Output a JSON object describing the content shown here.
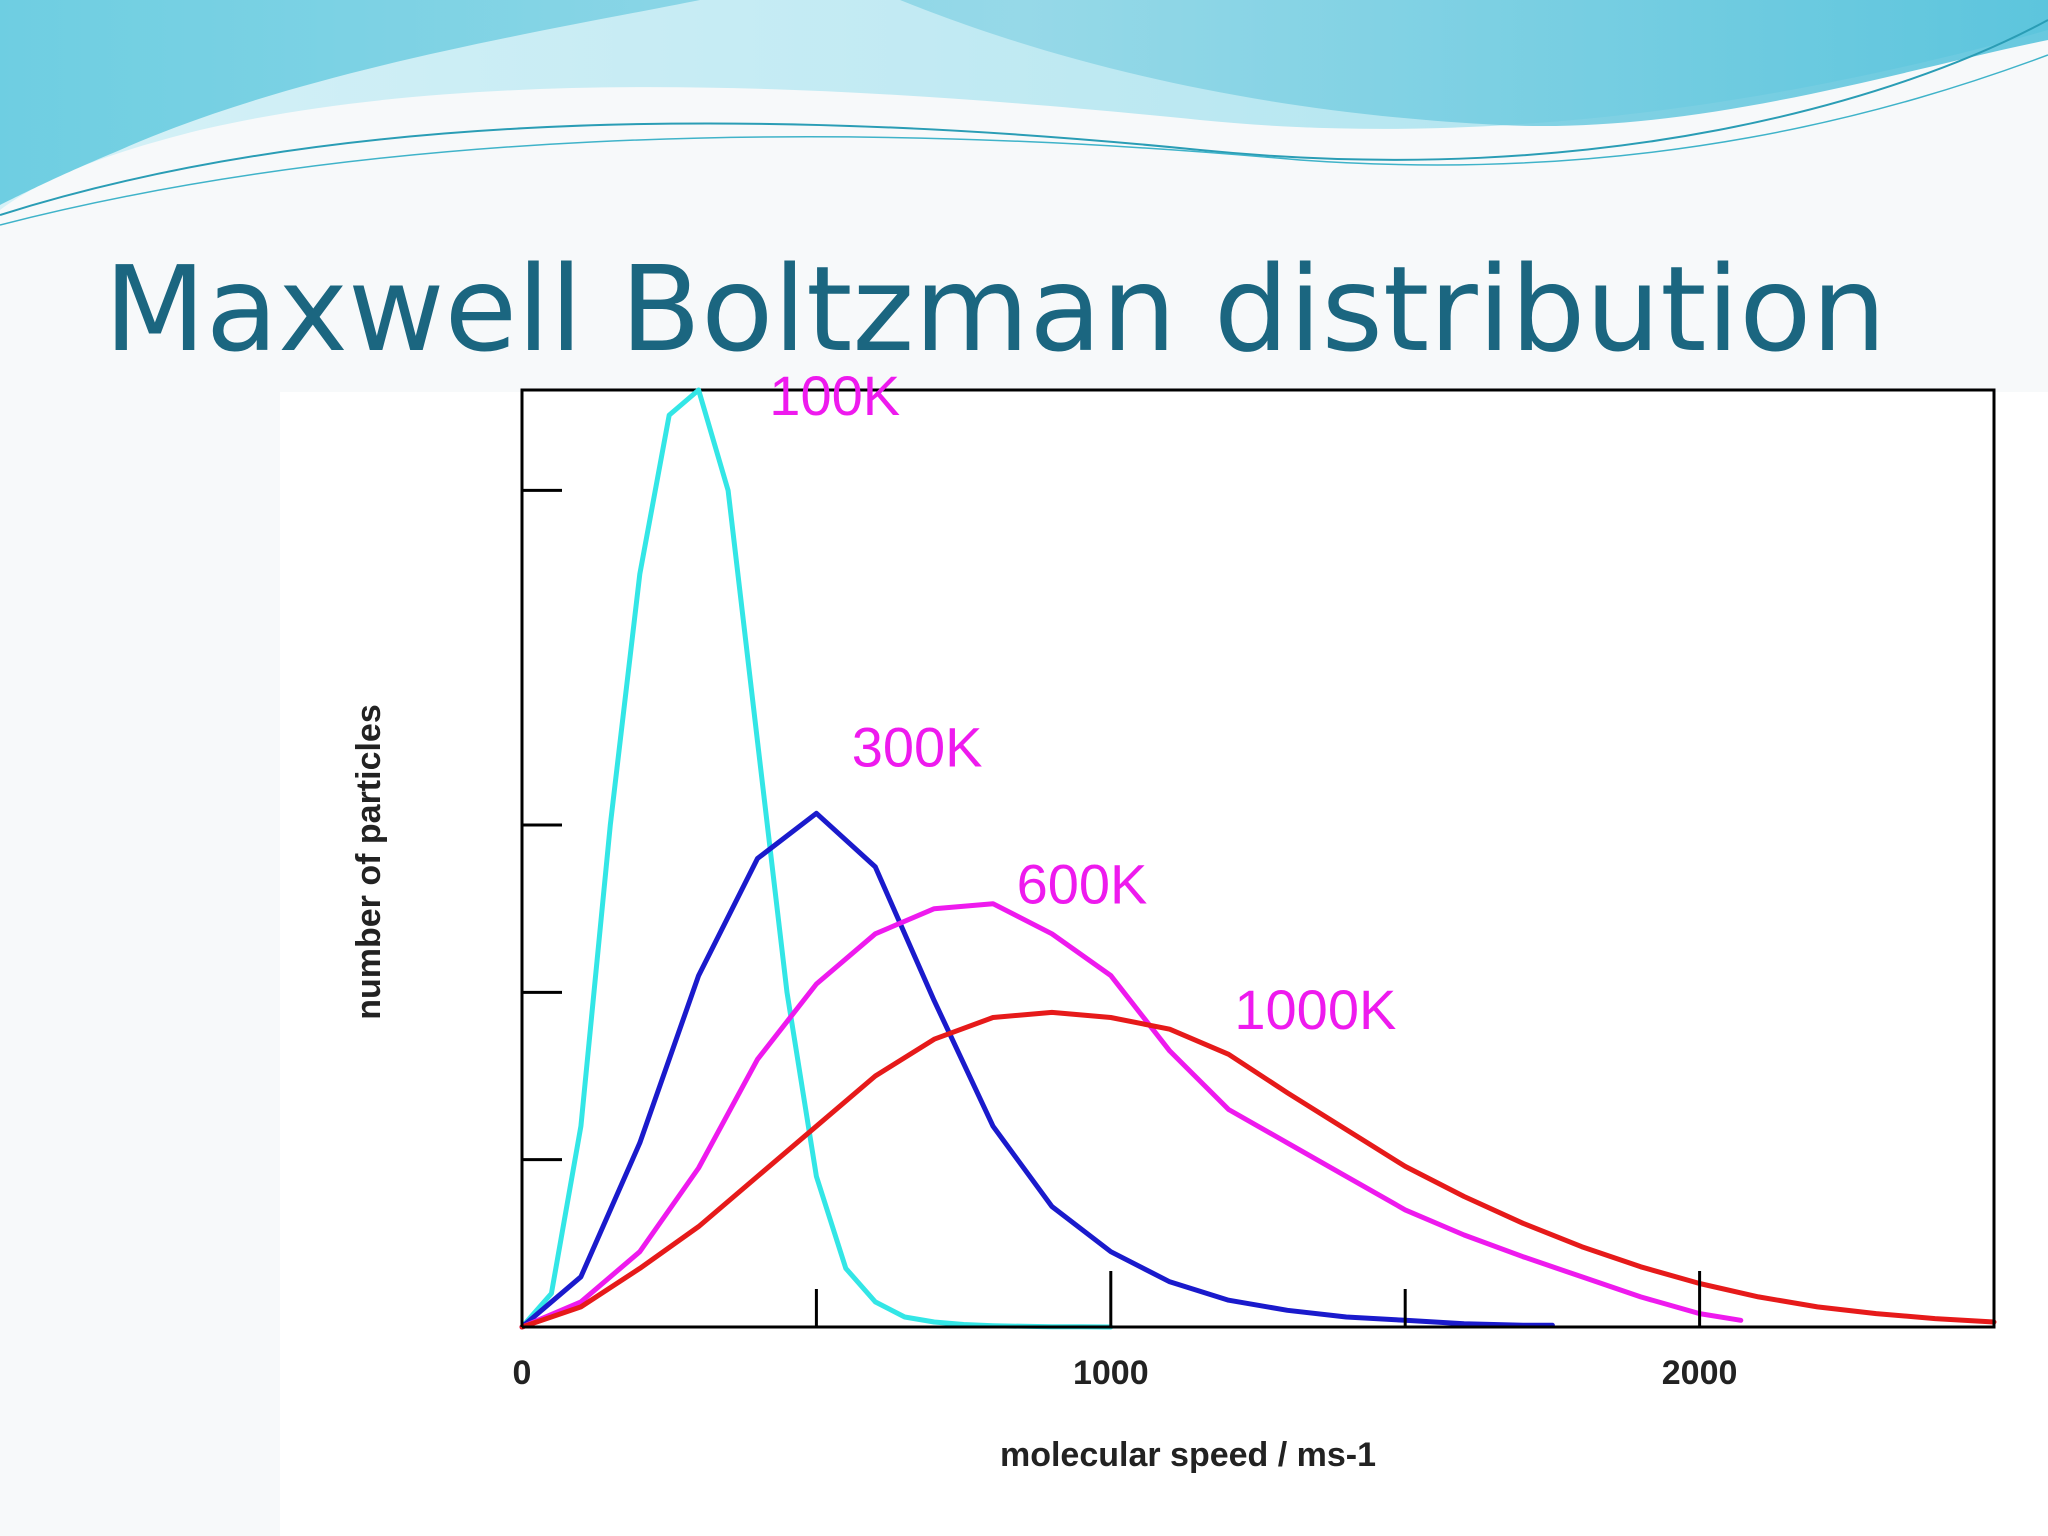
{
  "slide": {
    "title": "Maxwell Boltzman distribution"
  },
  "colors": {
    "title": "#1b6680",
    "wave_light": "#bfeaf2",
    "wave_mid": "#7fd0e3",
    "wave_line": "#2a9db5"
  },
  "chart_data": {
    "type": "line",
    "title": "",
    "xlabel": "molecular speed / ms-1",
    "ylabel": "number of particles",
    "xlim": [
      0,
      2500
    ],
    "ylim": [
      0,
      5.6
    ],
    "x_ticks": [
      0,
      500,
      1000,
      1500,
      2000,
      2500
    ],
    "x_tick_labels": [
      {
        "value": 0,
        "label": "0"
      },
      {
        "value": 1000,
        "label": "1000"
      },
      {
        "value": 2000,
        "label": "2000"
      }
    ],
    "y_ticks": [
      1,
      2,
      3,
      5
    ],
    "grid": false,
    "legend": "inline-labels",
    "series": [
      {
        "name": "100K",
        "color": "#33e6e6",
        "label_x": 420,
        "label_y": 5.45,
        "x": [
          0,
          50,
          100,
          150,
          200,
          250,
          300,
          350,
          400,
          450,
          500,
          550,
          600,
          650,
          700,
          750,
          800,
          850,
          900,
          950,
          1000
        ],
        "y": [
          0,
          0.2,
          1.2,
          3.0,
          4.5,
          5.45,
          5.6,
          5.0,
          3.5,
          2.0,
          0.9,
          0.35,
          0.15,
          0.06,
          0.03,
          0.015,
          0.008,
          0.004,
          0.002,
          0.001,
          0
        ]
      },
      {
        "name": "300K",
        "color": "#1a1acc",
        "label_x": 560,
        "label_y": 3.35,
        "x": [
          0,
          100,
          200,
          300,
          400,
          500,
          600,
          700,
          800,
          900,
          1000,
          1100,
          1200,
          1300,
          1400,
          1500,
          1600,
          1700,
          1750
        ],
        "y": [
          0,
          0.3,
          1.1,
          2.1,
          2.8,
          3.07,
          2.75,
          1.95,
          1.2,
          0.72,
          0.45,
          0.27,
          0.16,
          0.1,
          0.06,
          0.04,
          0.02,
          0.01,
          0.01
        ]
      },
      {
        "name": "600K",
        "color": "#ee1aee",
        "label_x": 840,
        "label_y": 2.53,
        "x": [
          0,
          100,
          200,
          300,
          400,
          500,
          600,
          700,
          800,
          900,
          1000,
          1100,
          1200,
          1300,
          1400,
          1500,
          1600,
          1700,
          1800,
          1900,
          2000,
          2070
        ],
        "y": [
          0,
          0.15,
          0.45,
          0.95,
          1.6,
          2.05,
          2.35,
          2.5,
          2.53,
          2.35,
          2.1,
          1.65,
          1.3,
          1.1,
          0.9,
          0.7,
          0.55,
          0.42,
          0.3,
          0.18,
          0.08,
          0.04
        ]
      },
      {
        "name": "1000K",
        "color": "#e61a1a",
        "label_x": 1210,
        "label_y": 1.78,
        "x": [
          0,
          100,
          200,
          300,
          400,
          500,
          600,
          700,
          800,
          900,
          1000,
          1100,
          1200,
          1300,
          1400,
          1500,
          1600,
          1700,
          1800,
          1900,
          2000,
          2100,
          2200,
          2300,
          2400,
          2500
        ],
        "y": [
          0,
          0.12,
          0.35,
          0.6,
          0.9,
          1.2,
          1.5,
          1.72,
          1.85,
          1.88,
          1.85,
          1.78,
          1.63,
          1.4,
          1.18,
          0.96,
          0.78,
          0.62,
          0.48,
          0.36,
          0.26,
          0.18,
          0.12,
          0.08,
          0.05,
          0.03
        ]
      }
    ]
  }
}
